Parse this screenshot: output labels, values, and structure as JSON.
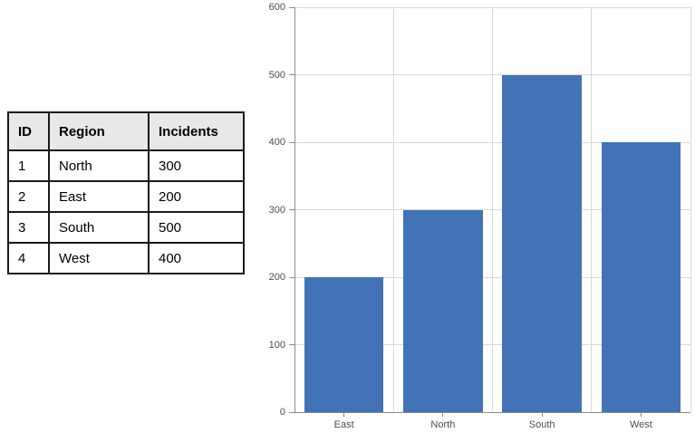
{
  "table": {
    "headers": [
      "ID",
      "Region",
      "Incidents"
    ],
    "rows": [
      {
        "id": "1",
        "region": "North",
        "incidents": "300"
      },
      {
        "id": "2",
        "region": "East",
        "incidents": "200"
      },
      {
        "id": "3",
        "region": "South",
        "incidents": "500"
      },
      {
        "id": "4",
        "region": "West",
        "incidents": "400"
      }
    ]
  },
  "chart_data": {
    "type": "bar",
    "categories": [
      "East",
      "North",
      "South",
      "West"
    ],
    "values": [
      200,
      300,
      500,
      400
    ],
    "title": "",
    "xlabel": "",
    "ylabel": "",
    "ylim": [
      0,
      600
    ],
    "ytick_interval": 100,
    "ytick_labels": [
      "0",
      "100",
      "200",
      "300",
      "400",
      "500",
      "600"
    ],
    "grid": true,
    "legend": "none",
    "bar_color": "#4273B7",
    "gridline_color": "#D9D9D9",
    "axis_color": "#8C8C8C",
    "label_color": "#4D4D4D"
  }
}
